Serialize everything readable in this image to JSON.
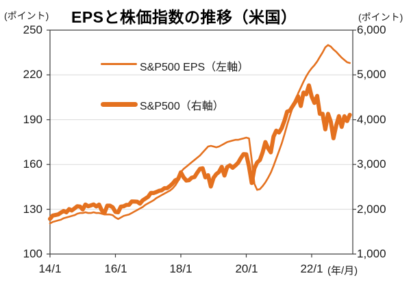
{
  "title": "EPSと株価指数の推移（米国）",
  "left_axis_unit": "(ポイント)",
  "right_axis_unit": "(ポイント)",
  "x_axis_unit": "(年/月)",
  "legend": [
    {
      "label": "S&P500 EPS（左軸）",
      "style": "thin"
    },
    {
      "label": "S&P500（右軸）",
      "style": "thick"
    }
  ],
  "colors": {
    "line": "#E4711F",
    "grid": "#D9D9D9",
    "axis": "#3a3a3a",
    "text": "#1a1a1a"
  },
  "chart_data": {
    "type": "line",
    "title": "EPSと株価指数の推移（米国）",
    "x_start": "2014-01",
    "x_interval": "monthly",
    "grid": "horizontal-only",
    "legend_position": "inside-top-left",
    "left_axis": {
      "label": "(ポイント)",
      "min": 100,
      "max": 250,
      "ticks": [
        {
          "value": 250,
          "label": "250"
        },
        {
          "value": 220,
          "label": "220"
        },
        {
          "value": 190,
          "label": "190"
        },
        {
          "value": 160,
          "label": "160"
        },
        {
          "value": 130,
          "label": "130"
        },
        {
          "value": 100,
          "label": "100"
        }
      ],
      "grid_values": [
        220,
        190,
        160,
        130
      ]
    },
    "right_axis": {
      "label": "(ポイント)",
      "min": 1000,
      "max": 6000,
      "ticks": [
        {
          "value": 6000,
          "label": "6,000"
        },
        {
          "value": 5000,
          "label": "5,000"
        },
        {
          "value": 4000,
          "label": "4,000"
        },
        {
          "value": 3000,
          "label": "3,000"
        },
        {
          "value": 2000,
          "label": "2,000"
        },
        {
          "value": 1000,
          "label": "1,000"
        }
      ]
    },
    "x_ticks": [
      {
        "month": 0,
        "label": "14/1"
      },
      {
        "month": 24,
        "label": "16/1"
      },
      {
        "month": 48,
        "label": "18/1"
      },
      {
        "month": 72,
        "label": "20/1"
      },
      {
        "month": 96,
        "label": "22/1"
      }
    ],
    "series": [
      {
        "name": "S&P500 EPS（左軸）",
        "axis": "left",
        "style": "thin",
        "values": [
          120.5,
          121.5,
          122,
          122.5,
          123,
          124,
          124.5,
          125,
          125.5,
          126,
          127,
          127.5,
          127.5,
          128,
          127.5,
          127.5,
          128,
          127.5,
          127.5,
          127,
          126.5,
          126.5,
          126.5,
          126,
          124.5,
          123.5,
          124.5,
          125.5,
          126,
          126.5,
          127.5,
          128.5,
          129.5,
          130.5,
          131.5,
          133,
          134,
          135,
          136,
          137.5,
          138.5,
          139.5,
          140.5,
          141.5,
          142.5,
          144,
          146,
          149,
          155,
          157,
          158.5,
          160,
          161.5,
          163,
          164.5,
          166,
          168,
          170,
          172,
          172.5,
          172,
          171.5,
          172,
          173,
          174,
          175,
          175.5,
          176,
          176.5,
          176.5,
          177,
          177.5,
          178,
          177.5,
          163,
          147,
          143,
          143.5,
          145.5,
          148,
          151,
          154.5,
          159,
          164,
          169,
          174,
          180,
          186.5,
          192.5,
          198,
          203,
          207.5,
          211.5,
          215.5,
          219,
          222,
          224.5,
          226.5,
          229,
          232,
          235,
          238.5,
          240,
          239,
          237,
          235.5,
          233.5,
          231.5,
          230,
          228.5,
          228
        ]
      },
      {
        "name": "S&P500（右軸）",
        "axis": "right",
        "style": "thick",
        "values": [
          1783,
          1859,
          1872,
          1884,
          1924,
          1960,
          1931,
          2003,
          1972,
          2018,
          2068,
          2059,
          1995,
          2105,
          2068,
          2086,
          2107,
          2063,
          2104,
          1972,
          1920,
          2079,
          2080,
          2044,
          1940,
          1932,
          2060,
          2065,
          2097,
          2099,
          2174,
          2171,
          2168,
          2126,
          2199,
          2239,
          2279,
          2364,
          2363,
          2384,
          2412,
          2423,
          2470,
          2472,
          2519,
          2575,
          2648,
          2674,
          2824,
          2714,
          2641,
          2648,
          2705,
          2718,
          2816,
          2902,
          2914,
          2712,
          2760,
          2507,
          2704,
          2784,
          2834,
          2946,
          2752,
          2942,
          2980,
          2926,
          2977,
          3038,
          3141,
          3231,
          3226,
          2954,
          2585,
          2912,
          3044,
          3100,
          3271,
          3500,
          3363,
          3270,
          3622,
          3756,
          3714,
          3811,
          3973,
          4181,
          4204,
          4298,
          4395,
          4523,
          4308,
          4605,
          4567,
          4766,
          4516,
          4374,
          4530,
          4132,
          4132,
          3785,
          4130,
          3955,
          3586,
          3872,
          4080,
          3840,
          4077,
          3970,
          4109
        ]
      }
    ]
  }
}
